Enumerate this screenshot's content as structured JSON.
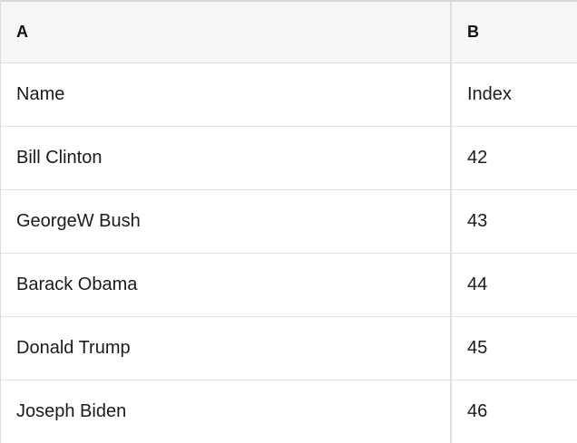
{
  "table": {
    "columns": [
      "A",
      "B"
    ],
    "rows": [
      {
        "a": "Name",
        "b": "Index"
      },
      {
        "a": "Bill Clinton",
        "b": "42"
      },
      {
        "a": "GeorgeW Bush",
        "b": "43"
      },
      {
        "a": "Barack Obama",
        "b": "44"
      },
      {
        "a": "Donald Trump",
        "b": "45"
      },
      {
        "a": "Joseph Biden",
        "b": "46"
      }
    ],
    "colors": {
      "header_bg": "#f7f7f7",
      "border": "#e0e0e0",
      "outer_border": "#d8d8d8",
      "text": "#1b1b1b",
      "row_bg": "#ffffff"
    }
  }
}
